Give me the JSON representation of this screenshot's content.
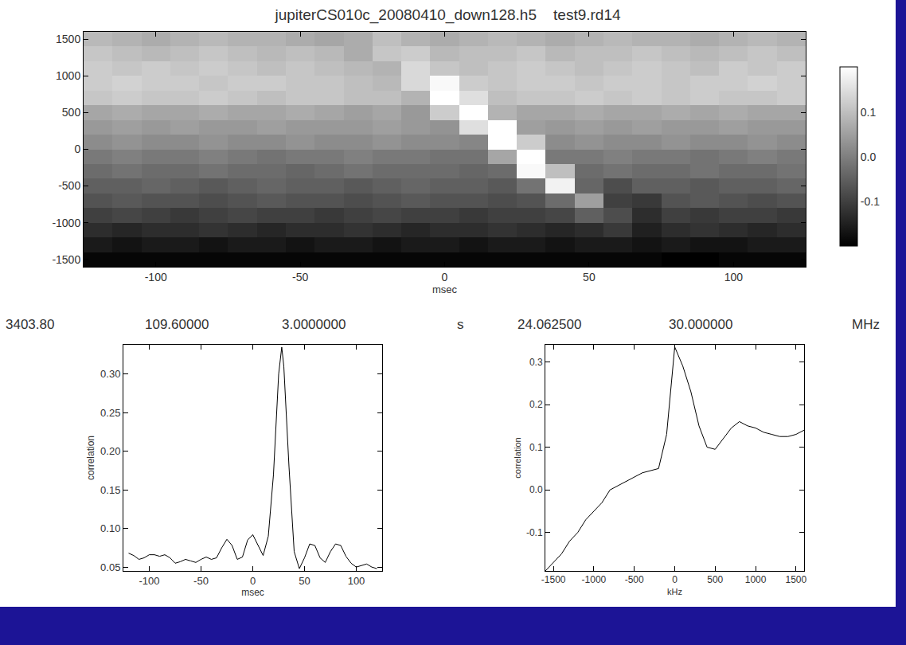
{
  "chart_data": [
    {
      "type": "heatmap",
      "title": "jupiterCS010c_20080410_down128.h5    test9.rd14",
      "x_label": "msec",
      "x": [
        -120,
        -110,
        -100,
        -90,
        -80,
        -70,
        -60,
        -50,
        -40,
        -30,
        -20,
        -10,
        0,
        10,
        20,
        30,
        40,
        50,
        60,
        70,
        80,
        90,
        100,
        110,
        120
      ],
      "y": [
        1500,
        1300,
        1100,
        900,
        700,
        500,
        300,
        100,
        -100,
        -300,
        -500,
        -700,
        -900,
        -1100,
        -1300,
        -1500
      ],
      "z": [
        [
          0.09,
          0.08,
          0.07,
          0.08,
          0.09,
          0.08,
          0.08,
          0.07,
          0.06,
          0.07,
          0.1,
          0.08,
          0.07,
          0.08,
          0.09,
          0.08,
          0.07,
          0.08,
          0.09,
          0.08,
          0.08,
          0.07,
          0.08,
          0.09,
          0.08
        ],
        [
          0.11,
          0.1,
          0.09,
          0.1,
          0.11,
          0.1,
          0.09,
          0.1,
          0.09,
          0.07,
          0.11,
          0.12,
          0.09,
          0.1,
          0.1,
          0.11,
          0.09,
          0.1,
          0.1,
          0.11,
          0.1,
          0.09,
          0.1,
          0.11,
          0.1
        ],
        [
          0.12,
          0.11,
          0.12,
          0.11,
          0.12,
          0.11,
          0.1,
          0.11,
          0.1,
          0.09,
          0.08,
          0.14,
          0.11,
          0.1,
          0.11,
          0.12,
          0.11,
          0.1,
          0.11,
          0.12,
          0.11,
          0.1,
          0.12,
          0.11,
          0.12
        ],
        [
          0.12,
          0.13,
          0.12,
          0.12,
          0.11,
          0.12,
          0.12,
          0.11,
          0.11,
          0.1,
          0.09,
          0.14,
          0.19,
          0.12,
          0.11,
          0.12,
          0.12,
          0.11,
          0.12,
          0.12,
          0.11,
          0.12,
          0.12,
          0.13,
          0.12
        ],
        [
          0.11,
          0.12,
          0.11,
          0.11,
          0.12,
          0.11,
          0.1,
          0.11,
          0.11,
          0.1,
          0.1,
          0.08,
          0.2,
          0.15,
          0.1,
          0.11,
          0.11,
          0.12,
          0.11,
          0.12,
          0.11,
          0.12,
          0.11,
          0.11,
          0.12
        ],
        [
          0.06,
          0.07,
          0.06,
          0.06,
          0.07,
          0.06,
          0.06,
          0.07,
          0.06,
          0.05,
          0.06,
          0.04,
          0.12,
          0.2,
          0.08,
          0.06,
          0.06,
          0.07,
          0.06,
          0.06,
          0.07,
          0.06,
          0.07,
          0.06,
          0.06
        ],
        [
          0.04,
          0.05,
          0.04,
          0.05,
          0.04,
          0.04,
          0.05,
          0.04,
          0.04,
          0.04,
          0.05,
          0.04,
          0.03,
          0.15,
          0.2,
          0.05,
          0.04,
          0.05,
          0.04,
          0.05,
          0.04,
          0.04,
          0.05,
          0.04,
          0.04
        ],
        [
          0.02,
          0.03,
          0.02,
          0.02,
          0.03,
          0.02,
          0.02,
          0.03,
          0.02,
          0.02,
          0.03,
          0.02,
          0.02,
          0.01,
          0.2,
          0.12,
          0.02,
          0.03,
          0.02,
          0.02,
          0.03,
          0.02,
          0.02,
          0.03,
          0.02
        ],
        [
          -0.01,
          0.0,
          -0.01,
          -0.01,
          0.0,
          -0.01,
          -0.02,
          -0.01,
          -0.01,
          0.0,
          -0.01,
          -0.01,
          -0.02,
          -0.02,
          0.06,
          0.2,
          -0.01,
          -0.01,
          0.0,
          -0.01,
          -0.01,
          -0.02,
          -0.01,
          0.0,
          -0.01
        ],
        [
          -0.03,
          -0.02,
          -0.03,
          -0.03,
          -0.02,
          -0.03,
          -0.03,
          -0.04,
          -0.03,
          -0.02,
          -0.03,
          -0.03,
          -0.03,
          -0.04,
          -0.03,
          0.19,
          0.1,
          -0.03,
          -0.02,
          -0.03,
          -0.03,
          -0.02,
          -0.03,
          -0.03,
          -0.02
        ],
        [
          -0.05,
          -0.05,
          -0.04,
          -0.05,
          -0.06,
          -0.05,
          -0.04,
          -0.05,
          -0.05,
          -0.06,
          -0.05,
          -0.04,
          -0.05,
          -0.05,
          -0.06,
          -0.02,
          0.18,
          -0.04,
          -0.08,
          -0.05,
          -0.05,
          -0.06,
          -0.05,
          -0.05,
          -0.04
        ],
        [
          -0.07,
          -0.06,
          -0.07,
          -0.07,
          -0.08,
          -0.07,
          -0.06,
          -0.07,
          -0.07,
          -0.08,
          -0.07,
          -0.06,
          -0.07,
          -0.07,
          -0.08,
          -0.07,
          -0.03,
          0.05,
          -0.1,
          -0.11,
          -0.07,
          -0.06,
          -0.07,
          -0.08,
          -0.07
        ],
        [
          -0.1,
          -0.09,
          -0.1,
          -0.11,
          -0.1,
          -0.09,
          -0.1,
          -0.1,
          -0.11,
          -0.1,
          -0.09,
          -0.1,
          -0.1,
          -0.11,
          -0.1,
          -0.1,
          -0.09,
          -0.05,
          -0.08,
          -0.13,
          -0.1,
          -0.11,
          -0.1,
          -0.1,
          -0.11
        ],
        [
          -0.13,
          -0.14,
          -0.13,
          -0.13,
          -0.12,
          -0.13,
          -0.14,
          -0.13,
          -0.13,
          -0.12,
          -0.13,
          -0.14,
          -0.13,
          -0.13,
          -0.12,
          -0.13,
          -0.14,
          -0.13,
          -0.11,
          -0.15,
          -0.13,
          -0.12,
          -0.13,
          -0.14,
          -0.13
        ],
        [
          -0.16,
          -0.17,
          -0.16,
          -0.16,
          -0.17,
          -0.16,
          -0.16,
          -0.17,
          -0.16,
          -0.16,
          -0.17,
          -0.16,
          -0.16,
          -0.17,
          -0.16,
          -0.16,
          -0.17,
          -0.16,
          -0.16,
          -0.17,
          -0.16,
          -0.17,
          -0.17,
          -0.16,
          -0.16
        ],
        [
          -0.19,
          -0.19,
          -0.19,
          -0.19,
          -0.19,
          -0.19,
          -0.19,
          -0.19,
          -0.19,
          -0.19,
          -0.19,
          -0.19,
          -0.19,
          -0.19,
          -0.19,
          -0.19,
          -0.19,
          -0.19,
          -0.19,
          -0.19,
          -0.2,
          -0.2,
          -0.19,
          -0.19,
          -0.19
        ]
      ],
      "xlim": [
        -125,
        125
      ],
      "xticks": [
        -100,
        -50,
        0,
        50,
        100
      ],
      "ylim": [
        -1600,
        1600
      ],
      "yticks": [
        -1500,
        -1000,
        -500,
        0,
        500,
        1000,
        1500
      ],
      "zlim": [
        -0.2,
        0.2
      ],
      "zticks": [
        -0.1,
        {
          "value": 0,
          "label": "0.0"
        },
        0.1
      ]
    },
    {
      "type": "line",
      "header": [
        "3403.80",
        "109.60000",
        "3.0000000",
        "s"
      ],
      "x_label": "msec",
      "y_label": "correlation",
      "color": "#000000",
      "x": [
        -120,
        -115,
        -110,
        -105,
        -100,
        -95,
        -90,
        -85,
        -80,
        -75,
        -70,
        -65,
        -60,
        -55,
        -50,
        -45,
        -40,
        -35,
        -30,
        -25,
        -20,
        -15,
        -10,
        -5,
        0,
        5,
        10,
        15,
        20,
        25,
        28,
        30,
        35,
        40,
        45,
        50,
        55,
        60,
        65,
        70,
        75,
        80,
        85,
        90,
        95,
        100,
        105,
        110,
        115,
        120
      ],
      "values": [
        0.068,
        0.065,
        0.06,
        0.062,
        0.066,
        0.066,
        0.064,
        0.066,
        0.062,
        0.055,
        0.057,
        0.06,
        0.058,
        0.056,
        0.06,
        0.063,
        0.06,
        0.062,
        0.075,
        0.086,
        0.078,
        0.06,
        0.063,
        0.085,
        0.092,
        0.078,
        0.065,
        0.09,
        0.17,
        0.3,
        0.335,
        0.31,
        0.18,
        0.07,
        0.048,
        0.062,
        0.08,
        0.078,
        0.062,
        0.056,
        0.07,
        0.08,
        0.078,
        0.064,
        0.055,
        0.05,
        0.052,
        0.054,
        0.05,
        0.048
      ],
      "xlim": [
        -125,
        125
      ],
      "xticks": [
        -100,
        -50,
        0,
        50,
        100
      ],
      "ylim": [
        0.045,
        0.338
      ],
      "yticks": [
        0.05,
        {
          "value": 0.1,
          "label": "0.10"
        },
        0.15,
        {
          "value": 0.2,
          "label": "0.20"
        },
        0.25,
        {
          "value": 0.3,
          "label": "0.30"
        }
      ]
    },
    {
      "type": "line",
      "header": [
        "24.062500",
        "30.000000",
        "MHz"
      ],
      "x_label": "kHz",
      "y_label": "correlation",
      "color": "#000000",
      "x": [
        -1600,
        -1500,
        -1400,
        -1300,
        -1200,
        -1100,
        -1000,
        -900,
        -800,
        -700,
        -600,
        -500,
        -400,
        -300,
        -200,
        -100,
        0,
        100,
        200,
        300,
        400,
        500,
        600,
        700,
        800,
        900,
        1000,
        1100,
        1200,
        1300,
        1400,
        1500,
        1600
      ],
      "values": [
        -0.19,
        -0.17,
        -0.15,
        -0.12,
        -0.1,
        -0.07,
        -0.05,
        -0.03,
        0.0,
        0.01,
        0.02,
        0.03,
        0.04,
        0.045,
        0.05,
        0.13,
        0.335,
        0.29,
        0.23,
        0.15,
        0.1,
        0.095,
        0.12,
        0.145,
        0.16,
        0.15,
        0.145,
        0.135,
        0.13,
        0.125,
        0.125,
        0.13,
        0.14
      ],
      "xlim": [
        -1600,
        1600
      ],
      "xticks": [
        -1500,
        -1000,
        -500,
        0,
        500,
        1000,
        1500
      ],
      "ylim": [
        -0.19,
        0.34
      ],
      "yticks": [
        -0.1,
        {
          "value": 0,
          "label": "0.0"
        },
        0.1,
        0.2,
        0.3
      ]
    }
  ]
}
